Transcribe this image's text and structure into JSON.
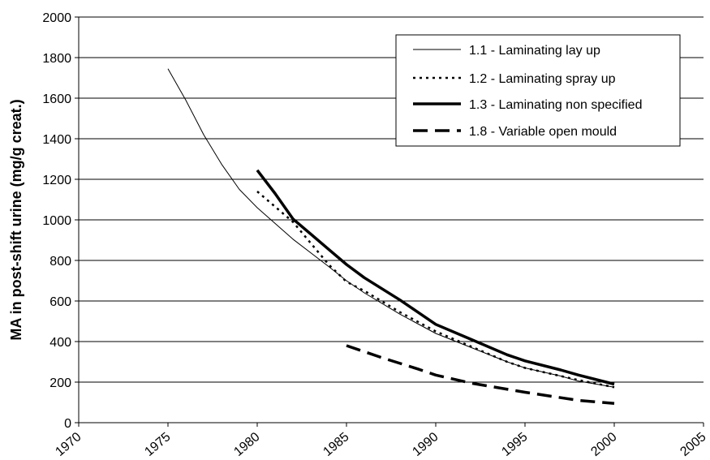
{
  "chart_data": {
    "type": "line",
    "title": "",
    "xlabel": "",
    "ylabel": "MA in post-shift urine (mg/g creat.)",
    "xlim": [
      1970,
      2005
    ],
    "ylim": [
      0,
      2000
    ],
    "x_ticks": [
      1970,
      1975,
      1980,
      1985,
      1990,
      1995,
      2000,
      2005
    ],
    "y_ticks": [
      0,
      200,
      400,
      600,
      800,
      1000,
      1200,
      1400,
      1600,
      1800,
      2000
    ],
    "grid": "horizontal",
    "legend_position": "top-right",
    "series": [
      {
        "name": "1.1 - Laminating lay up",
        "style": "thin-solid",
        "color": "#000000",
        "points": [
          [
            1975,
            1745
          ],
          [
            1976,
            1590
          ],
          [
            1977,
            1420
          ],
          [
            1978,
            1275
          ],
          [
            1979,
            1150
          ],
          [
            1980,
            1060
          ],
          [
            1982,
            905
          ],
          [
            1984,
            770
          ],
          [
            1985,
            700
          ],
          [
            1986,
            640
          ],
          [
            1988,
            535
          ],
          [
            1990,
            440
          ],
          [
            1992,
            370
          ],
          [
            1994,
            300
          ],
          [
            1995,
            270
          ],
          [
            1997,
            230
          ],
          [
            1998,
            205
          ],
          [
            2000,
            175
          ]
        ]
      },
      {
        "name": "1.2 - Laminating spray up",
        "style": "dotted",
        "color": "#000000",
        "points": [
          [
            1980,
            1140
          ],
          [
            1982,
            990
          ],
          [
            1984,
            780
          ],
          [
            1985,
            695
          ],
          [
            1986,
            650
          ],
          [
            1988,
            545
          ],
          [
            1990,
            450
          ],
          [
            1992,
            375
          ],
          [
            1994,
            300
          ],
          [
            1995,
            270
          ],
          [
            1997,
            230
          ],
          [
            1998,
            210
          ],
          [
            2000,
            175
          ]
        ]
      },
      {
        "name": "1.3 - Laminating non specified",
        "style": "thick-solid",
        "color": "#000000",
        "points": [
          [
            1980,
            1245
          ],
          [
            1981,
            1130
          ],
          [
            1982,
            1005
          ],
          [
            1984,
            855
          ],
          [
            1985,
            780
          ],
          [
            1986,
            715
          ],
          [
            1988,
            605
          ],
          [
            1990,
            485
          ],
          [
            1992,
            410
          ],
          [
            1994,
            335
          ],
          [
            1995,
            305
          ],
          [
            1997,
            260
          ],
          [
            1998,
            235
          ],
          [
            2000,
            190
          ]
        ]
      },
      {
        "name": "1.8 - Variable open mould",
        "style": "dashed",
        "color": "#000000",
        "points": [
          [
            1985,
            380
          ],
          [
            1987,
            320
          ],
          [
            1989,
            265
          ],
          [
            1990,
            235
          ],
          [
            1992,
            195
          ],
          [
            1995,
            150
          ],
          [
            1998,
            110
          ],
          [
            2000,
            95
          ]
        ]
      }
    ]
  }
}
